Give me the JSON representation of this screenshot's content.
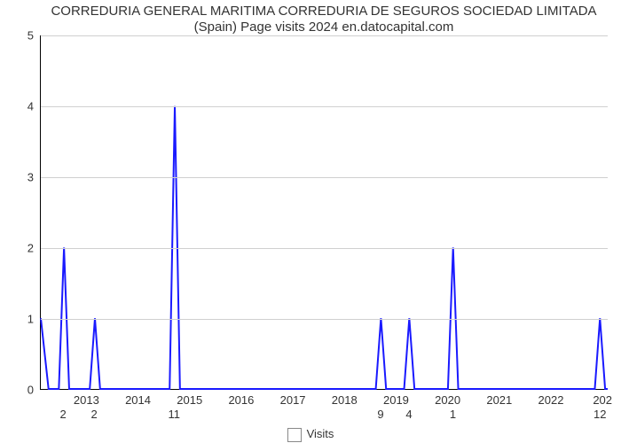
{
  "title": "CORREDURIA GENERAL MARITIMA CORREDURIA DE SEGUROS SOCIEDAD LIMITADA (Spain) Page visits 2024 en.datocapital.com",
  "chart": {
    "type": "line",
    "background_color": "#ffffff",
    "grid_color": "#d0d0d0",
    "axis_color": "#000000",
    "line_color": "#1a1aff",
    "line_width": 2,
    "title_fontsize": 15,
    "tick_fontsize": 13,
    "ylim": [
      0,
      5
    ],
    "ytick_step": 1,
    "yticks": [
      0,
      1,
      2,
      3,
      4,
      5
    ],
    "x_years": [
      "2013",
      "2014",
      "2015",
      "2016",
      "2017",
      "2018",
      "2019",
      "2020",
      "2021",
      "2022",
      "202"
    ],
    "peaks": [
      {
        "year_center": 2012.15,
        "value": 1,
        "show_label": false,
        "label": ""
      },
      {
        "year_center": 2012.55,
        "value": 2,
        "show_label": true,
        "label": "2"
      },
      {
        "year_center": 2013.15,
        "value": 1,
        "show_label": true,
        "label": "2"
      },
      {
        "year_center": 2014.7,
        "value": 4,
        "show_label": true,
        "label": "11"
      },
      {
        "year_center": 2018.7,
        "value": 1,
        "show_label": true,
        "label": "9"
      },
      {
        "year_center": 2019.25,
        "value": 1,
        "show_label": true,
        "label": "4"
      },
      {
        "year_center": 2020.1,
        "value": 2,
        "show_label": true,
        "label": "1"
      },
      {
        "year_center": 2022.95,
        "value": 1,
        "show_label": true,
        "label": "12"
      }
    ],
    "x_domain": [
      2012.1,
      2023.1
    ],
    "spike_halfwidth_years": 0.1,
    "legend": {
      "swatch_color": "#ffffff",
      "swatch_border": "#888888",
      "label": "Visits"
    }
  }
}
